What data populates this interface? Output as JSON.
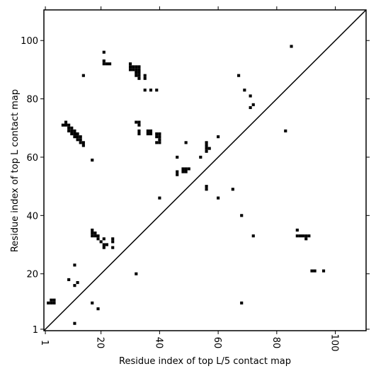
{
  "chart_data": {
    "type": "heatmap",
    "xlabel": "Residue index of top L/5 contact map",
    "ylabel": "Residue index of top L contact map",
    "xlim": [
      1,
      110
    ],
    "ylim": [
      1,
      110
    ],
    "xticks": [
      1,
      20,
      40,
      60,
      80,
      100
    ],
    "yticks": [
      1,
      20,
      40,
      60,
      80,
      100
    ],
    "grid": false,
    "diagonal": true,
    "cell_color": "#000000",
    "line_color": "#000000",
    "points": [
      [
        2,
        10
      ],
      [
        3,
        10
      ],
      [
        3,
        11
      ],
      [
        4,
        10
      ],
      [
        4,
        11
      ],
      [
        7,
        71
      ],
      [
        8,
        71
      ],
      [
        8,
        72
      ],
      [
        9,
        71
      ],
      [
        9,
        70
      ],
      [
        9,
        69
      ],
      [
        10,
        70
      ],
      [
        10,
        69
      ],
      [
        10,
        68
      ],
      [
        11,
        69
      ],
      [
        11,
        68
      ],
      [
        11,
        67
      ],
      [
        12,
        68
      ],
      [
        12,
        67
      ],
      [
        12,
        66
      ],
      [
        13,
        67
      ],
      [
        13,
        66
      ],
      [
        13,
        65
      ],
      [
        14,
        65
      ],
      [
        14,
        64
      ],
      [
        9,
        18
      ],
      [
        11,
        23
      ],
      [
        11,
        16
      ],
      [
        12,
        17
      ],
      [
        11,
        3
      ],
      [
        14,
        88
      ],
      [
        17,
        35
      ],
      [
        17,
        34
      ],
      [
        17,
        33
      ],
      [
        18,
        34
      ],
      [
        18,
        33
      ],
      [
        19,
        33
      ],
      [
        19,
        32
      ],
      [
        20,
        31
      ],
      [
        21,
        32
      ],
      [
        21,
        30
      ],
      [
        21,
        29
      ],
      [
        22,
        30
      ],
      [
        24,
        32
      ],
      [
        24,
        31
      ],
      [
        24,
        29
      ],
      [
        17,
        59
      ],
      [
        17,
        10
      ],
      [
        19,
        8
      ],
      [
        21,
        96
      ],
      [
        21,
        93
      ],
      [
        21,
        92
      ],
      [
        22,
        92
      ],
      [
        23,
        92
      ],
      [
        30,
        92
      ],
      [
        30,
        91
      ],
      [
        30,
        90
      ],
      [
        31,
        91
      ],
      [
        31,
        90
      ],
      [
        32,
        91
      ],
      [
        32,
        90
      ],
      [
        32,
        89
      ],
      [
        32,
        88
      ],
      [
        33,
        91
      ],
      [
        33,
        90
      ],
      [
        33,
        89
      ],
      [
        33,
        88
      ],
      [
        33,
        87
      ],
      [
        32,
        72
      ],
      [
        33,
        72
      ],
      [
        33,
        71
      ],
      [
        33,
        69
      ],
      [
        33,
        68
      ],
      [
        32,
        20
      ],
      [
        35,
        88
      ],
      [
        35,
        87
      ],
      [
        35,
        83
      ],
      [
        37,
        83
      ],
      [
        39,
        83
      ],
      [
        36,
        69
      ],
      [
        36,
        68
      ],
      [
        37,
        69
      ],
      [
        37,
        68
      ],
      [
        39,
        68
      ],
      [
        39,
        67
      ],
      [
        40,
        68
      ],
      [
        40,
        67
      ],
      [
        40,
        66
      ],
      [
        40,
        65
      ],
      [
        39,
        65
      ],
      [
        40,
        46
      ],
      [
        46,
        60
      ],
      [
        46,
        55
      ],
      [
        46,
        54
      ],
      [
        48,
        56
      ],
      [
        48,
        55
      ],
      [
        49,
        56
      ],
      [
        49,
        55
      ],
      [
        50,
        56
      ],
      [
        49,
        65
      ],
      [
        54,
        60
      ],
      [
        56,
        65
      ],
      [
        56,
        64
      ],
      [
        56,
        63
      ],
      [
        56,
        62
      ],
      [
        57,
        63
      ],
      [
        56,
        50
      ],
      [
        56,
        49
      ],
      [
        60,
        67
      ],
      [
        60,
        46
      ],
      [
        65,
        49
      ],
      [
        67,
        88
      ],
      [
        69,
        83
      ],
      [
        71,
        81
      ],
      [
        71,
        77
      ],
      [
        72,
        78
      ],
      [
        68,
        40
      ],
      [
        68,
        10
      ],
      [
        72,
        33
      ],
      [
        83,
        69
      ],
      [
        85,
        98
      ],
      [
        87,
        35
      ],
      [
        87,
        33
      ],
      [
        88,
        33
      ],
      [
        89,
        33
      ],
      [
        90,
        33
      ],
      [
        90,
        32
      ],
      [
        91,
        33
      ],
      [
        92,
        21
      ],
      [
        93,
        21
      ],
      [
        96,
        21
      ]
    ]
  }
}
